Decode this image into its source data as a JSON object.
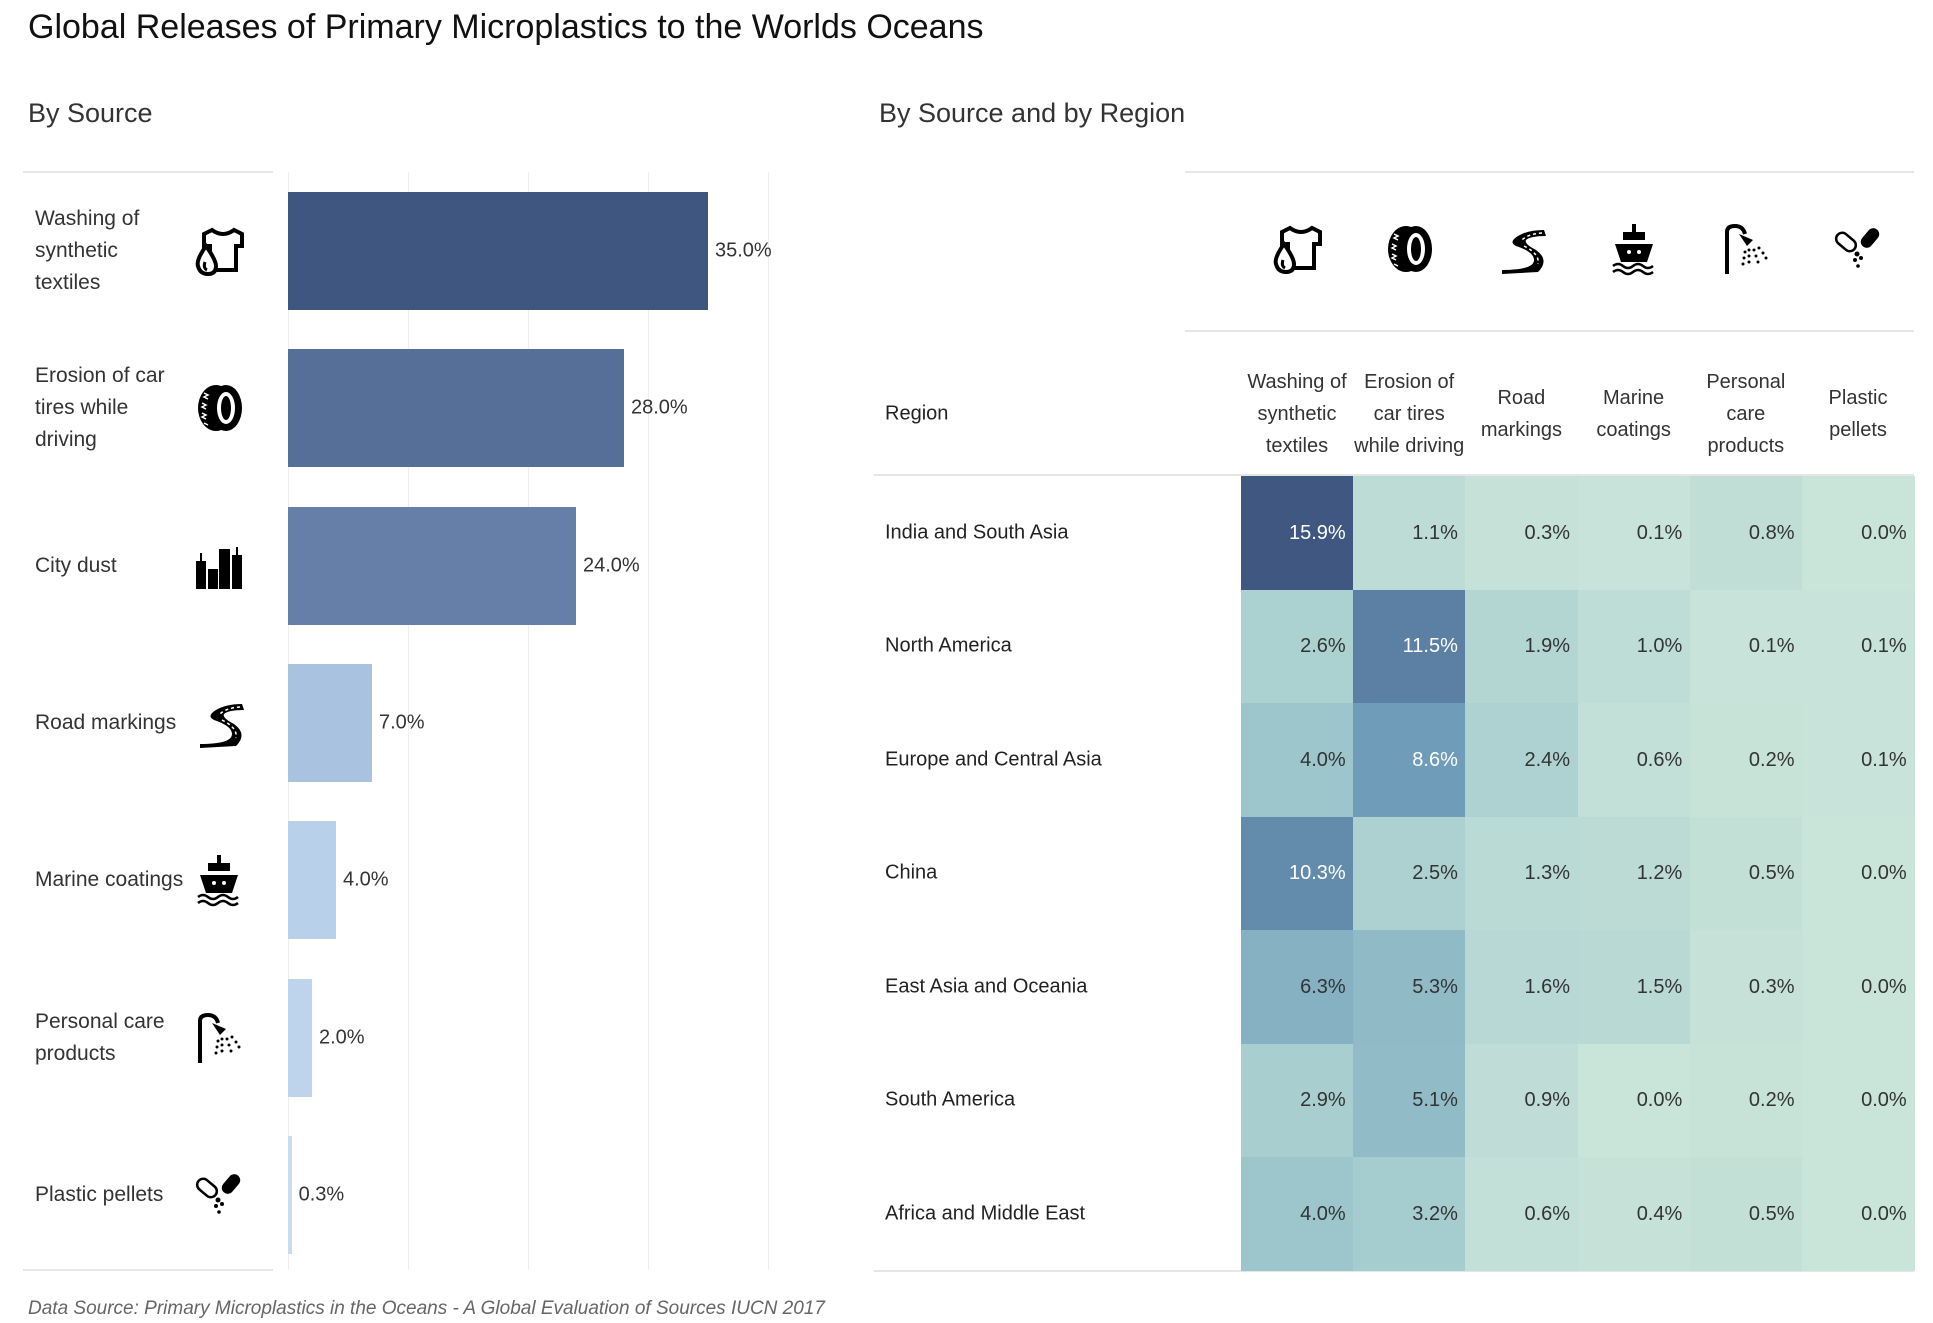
{
  "title": "Global Releases of Primary Microplastics to the Worlds Oceans",
  "left_subtitle": "By Source",
  "right_subtitle": "By Source and by Region",
  "footer": "Data Source: Primary Microplastics in the Oceans - A Global Evaluation of Sources IUCN 2017",
  "chart_data": [
    {
      "type": "bar",
      "orientation": "horizontal",
      "title": "By Source",
      "categories": [
        "Washing of synthetic textiles",
        "Erosion of car tires while driving",
        "City dust",
        "Road markings",
        "Marine coatings",
        "Personal care products",
        "Plastic pellets"
      ],
      "values": [
        35.0,
        28.0,
        24.0,
        7.0,
        4.0,
        2.0,
        0.3
      ],
      "data_labels": [
        "35.0%",
        "28.0%",
        "24.0%",
        "7.0%",
        "4.0%",
        "2.0%",
        "0.3%"
      ],
      "icons": [
        "shirt-drop-icon",
        "tire-icon",
        "city-icon",
        "road-icon",
        "ship-icon",
        "shower-icon",
        "pills-icon"
      ],
      "colors": [
        "#3f5680",
        "#566f99",
        "#657fa9",
        "#a8c2df",
        "#b8d0ea",
        "#bdd4ec",
        "#c9dcef"
      ],
      "xlim": [
        0,
        43
      ],
      "grid": true,
      "gridlines": [
        0,
        10,
        20,
        30,
        40
      ]
    },
    {
      "type": "heatmap",
      "title": "By Source and by Region",
      "row_header": "Region",
      "columns": [
        "Washing of synthetic textiles",
        "Erosion of car tires while driving",
        "Road markings",
        "Marine coatings",
        "Personal care products",
        "Plastic pellets"
      ],
      "column_icons": [
        "shirt-drop-icon",
        "tire-icon",
        "road-icon",
        "ship-icon",
        "shower-icon",
        "pills-icon"
      ],
      "rows": [
        "India and South Asia",
        "North America",
        "Europe and Central Asia",
        "China",
        "East Asia and Oceania",
        "South America",
        "Africa and Middle East"
      ],
      "values": [
        [
          15.9,
          1.1,
          0.3,
          0.1,
          0.8,
          0.0
        ],
        [
          2.6,
          11.5,
          1.9,
          1.0,
          0.1,
          0.1
        ],
        [
          4.0,
          8.6,
          2.4,
          0.6,
          0.2,
          0.1
        ],
        [
          10.3,
          2.5,
          1.3,
          1.2,
          0.5,
          0.0
        ],
        [
          6.3,
          5.3,
          1.6,
          1.5,
          0.3,
          0.0
        ],
        [
          2.9,
          5.1,
          0.9,
          0.0,
          0.2,
          0.0
        ],
        [
          4.0,
          3.2,
          0.6,
          0.4,
          0.5,
          0.0
        ]
      ],
      "color_scale": [
        "#c9e4d9",
        "#9cc6cc",
        "#6b98b6",
        "#3e5680"
      ]
    }
  ]
}
